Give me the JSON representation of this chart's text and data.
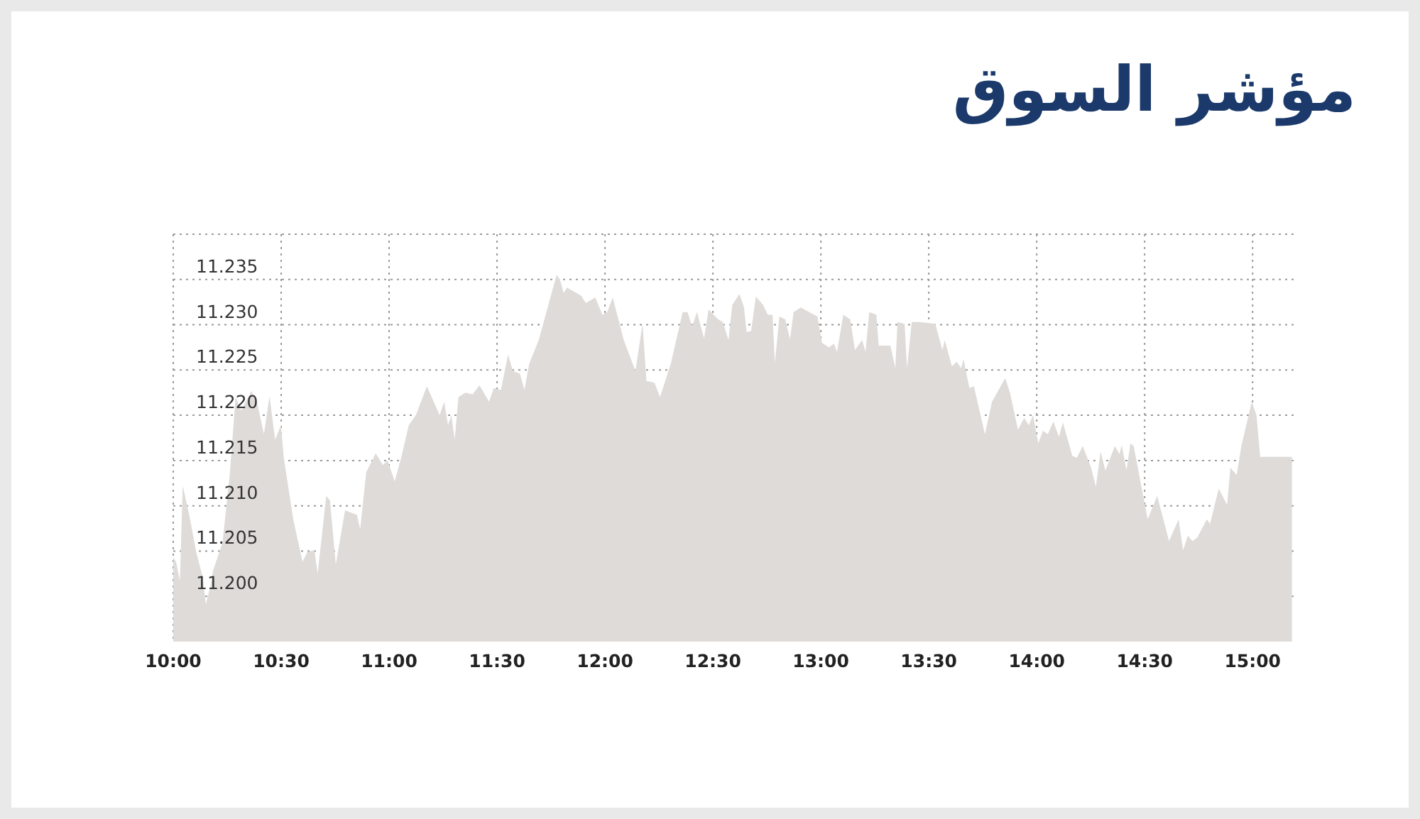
{
  "chart_data": {
    "type": "area",
    "title": "مؤشر السوق",
    "x": [
      10.0,
      10.013,
      10.031,
      10.044,
      10.074,
      10.107,
      10.136,
      10.151,
      10.173,
      10.184,
      10.228,
      10.261,
      10.289,
      10.315,
      10.363,
      10.392,
      10.42,
      10.446,
      10.472,
      10.499,
      10.512,
      10.556,
      10.599,
      10.621,
      10.654,
      10.669,
      10.709,
      10.726,
      10.753,
      10.796,
      10.851,
      10.866,
      10.894,
      10.938,
      10.971,
      10.993,
      11.026,
      11.058,
      11.091,
      11.124,
      11.175,
      11.234,
      11.255,
      11.273,
      11.288,
      11.304,
      11.321,
      11.354,
      11.386,
      11.419,
      11.463,
      11.485,
      11.518,
      11.551,
      11.573,
      11.606,
      11.627,
      11.649,
      11.693,
      11.747,
      11.776,
      11.791,
      11.809,
      11.824,
      11.89,
      11.911,
      11.955,
      11.988,
      12.01,
      12.036,
      12.087,
      12.141,
      12.174,
      12.192,
      12.229,
      12.255,
      12.305,
      12.36,
      12.382,
      12.404,
      12.426,
      12.459,
      12.48,
      12.524,
      12.546,
      12.572,
      12.59,
      12.623,
      12.644,
      12.656,
      12.677,
      12.699,
      12.732,
      12.754,
      12.776,
      12.787,
      12.808,
      12.835,
      12.857,
      12.874,
      12.907,
      12.984,
      13.005,
      13.038,
      13.06,
      13.075,
      13.104,
      13.136,
      13.158,
      13.191,
      13.207,
      13.224,
      13.257,
      13.268,
      13.322,
      13.345,
      13.355,
      13.388,
      13.399,
      13.421,
      13.454,
      13.53,
      13.563,
      13.574,
      13.607,
      13.629,
      13.65,
      13.661,
      13.688,
      13.709,
      13.76,
      13.793,
      13.854,
      13.876,
      13.913,
      13.942,
      13.963,
      13.983,
      14.007,
      14.029,
      14.051,
      14.077,
      14.103,
      14.121,
      14.165,
      14.186,
      14.213,
      14.252,
      14.274,
      14.296,
      14.318,
      14.362,
      14.383,
      14.394,
      14.416,
      14.434,
      14.449,
      14.514,
      14.558,
      14.613,
      14.657,
      14.678,
      14.7,
      14.722,
      14.744,
      14.788,
      14.803,
      14.843,
      14.882,
      14.897,
      14.926,
      14.948,
      14.996,
      15.018,
      15.035,
      15.182
    ],
    "series": [
      {
        "color": "#dedbd9",
        "values": [
          11.2043,
          11.2038,
          11.2017,
          11.2122,
          11.209,
          11.2048,
          11.2022,
          11.1991,
          11.2012,
          11.2028,
          11.2059,
          11.2132,
          11.222,
          11.2205,
          11.2227,
          11.221,
          11.2179,
          11.2221,
          11.2173,
          11.2189,
          11.2153,
          11.2085,
          11.2038,
          11.2049,
          11.2051,
          11.2025,
          11.2111,
          11.2106,
          11.2035,
          11.2095,
          11.209,
          11.2074,
          11.2137,
          11.2158,
          11.2145,
          11.215,
          11.2127,
          11.2155,
          11.2189,
          11.22,
          11.2232,
          11.22,
          11.2215,
          11.2189,
          11.22,
          11.2173,
          11.222,
          11.2225,
          11.2223,
          11.2233,
          11.2215,
          11.223,
          11.2228,
          11.2267,
          11.2249,
          11.2246,
          11.2228,
          11.2257,
          11.2283,
          11.233,
          11.2355,
          11.235,
          11.2335,
          11.2341,
          11.2332,
          11.2324,
          11.233,
          11.2311,
          11.2314,
          11.233,
          11.2283,
          11.2249,
          11.2301,
          11.2238,
          11.2236,
          11.222,
          11.2257,
          11.2314,
          11.2314,
          11.2298,
          11.2314,
          11.2285,
          11.2317,
          11.2306,
          11.2303,
          11.2283,
          11.2322,
          11.2334,
          11.2319,
          11.2292,
          11.2293,
          11.2331,
          11.2322,
          11.2311,
          11.2311,
          11.2258,
          11.2309,
          11.2306,
          11.2284,
          11.2314,
          11.2319,
          11.2309,
          11.228,
          11.2275,
          11.2279,
          11.227,
          11.2311,
          11.2306,
          11.2272,
          11.2283,
          11.227,
          11.2314,
          11.2311,
          11.2277,
          11.2277,
          11.2252,
          11.2303,
          11.2301,
          11.2252,
          11.2303,
          11.2303,
          11.2301,
          11.2272,
          11.2283,
          11.2254,
          11.2259,
          11.2252,
          11.2262,
          11.223,
          11.2232,
          11.2179,
          11.2215,
          11.2241,
          11.2225,
          11.2184,
          11.2197,
          11.2189,
          11.22,
          11.2169,
          11.2183,
          11.2179,
          11.2193,
          11.2176,
          11.2192,
          11.2155,
          11.2153,
          11.2166,
          11.2142,
          11.2121,
          11.216,
          11.2139,
          11.2166,
          11.2157,
          11.2167,
          11.2139,
          11.2169,
          11.2166,
          11.2085,
          11.2111,
          11.2061,
          11.2085,
          11.2051,
          11.2067,
          11.2061,
          11.2065,
          11.2085,
          11.208,
          11.2119,
          11.2101,
          11.2142,
          11.2134,
          11.2166,
          11.2215,
          11.22,
          11.2154,
          11.2154
        ]
      }
    ],
    "xlim": [
      10,
      15.19
    ],
    "ylim": [
      11.195,
      11.24
    ],
    "xticks": [
      {
        "value": 10,
        "label": "10:00"
      },
      {
        "value": 10.5,
        "label": "10:30"
      },
      {
        "value": 11,
        "label": "11:00"
      },
      {
        "value": 11.5,
        "label": "11:30"
      },
      {
        "value": 12,
        "label": "12:00"
      },
      {
        "value": 12.5,
        "label": "12:30"
      },
      {
        "value": 13,
        "label": "13:00"
      },
      {
        "value": 13.5,
        "label": "13:30"
      },
      {
        "value": 14,
        "label": "14:00"
      },
      {
        "value": 14.5,
        "label": "14:30"
      },
      {
        "value": 15,
        "label": "15:00"
      }
    ],
    "yticks": [
      {
        "value": 11.2,
        "label": "11.200"
      },
      {
        "value": 11.205,
        "label": "11.205"
      },
      {
        "value": 11.21,
        "label": "11.210"
      },
      {
        "value": 11.215,
        "label": "11.215"
      },
      {
        "value": 11.22,
        "label": "11.220"
      },
      {
        "value": 11.225,
        "label": "11.225"
      },
      {
        "value": 11.23,
        "label": "11.230"
      },
      {
        "value": 11.235,
        "label": "11.235"
      },
      {
        "value": 11.24,
        "label": null
      }
    ],
    "grid": true
  }
}
